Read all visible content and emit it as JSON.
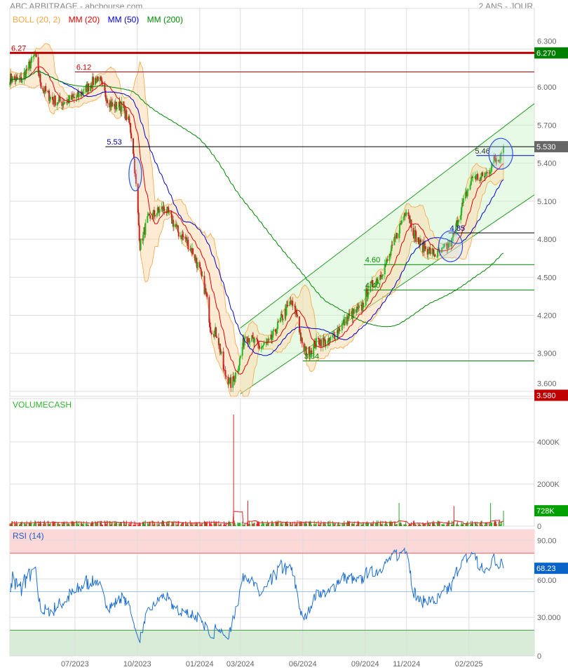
{
  "header": {
    "title": "ABC ARBITRAGE - abcbourse.com",
    "period": "2 ANS - JOUR"
  },
  "legend": [
    {
      "label": "BOLL (20, 2)",
      "color": "#f5a540"
    },
    {
      "label": "MM (20)",
      "color": "#e00000"
    },
    {
      "label": "MM (50)",
      "color": "#0000cc"
    },
    {
      "label": "MM (200)",
      "color": "#008800"
    }
  ],
  "chart_data": [
    {
      "type": "candlestick",
      "panel": "price",
      "y_ticks": [
        "6.300",
        "6.000",
        "5.700",
        "5.400",
        "5.100",
        "4.800",
        "4.500",
        "4.200",
        "3.900",
        "3.600"
      ],
      "ylim": [
        3.58,
        6.36
      ],
      "x_ticks": [
        "07/2023",
        "10/2023",
        "01/2024",
        "03/2024",
        "06/2024",
        "09/2024",
        "11/2024",
        "02/2025"
      ],
      "grid": true,
      "close_approx": [
        [
          "2023-03-27",
          6.07
        ],
        [
          "2023-04-12",
          6.05
        ],
        [
          "2023-04-28",
          6.2
        ],
        [
          "2023-05-03",
          6.25
        ],
        [
          "2023-05-13",
          6.0
        ],
        [
          "2023-05-29",
          5.9
        ],
        [
          "2023-06-13",
          5.88
        ],
        [
          "2023-07-04",
          5.92
        ],
        [
          "2023-07-20",
          6.0
        ],
        [
          "2023-08-04",
          6.08
        ],
        [
          "2023-08-14",
          5.95
        ],
        [
          "2023-08-25",
          5.85
        ],
        [
          "2023-09-09",
          5.85
        ],
        [
          "2023-09-20",
          5.7
        ],
        [
          "2023-09-25",
          5.5
        ],
        [
          "2023-09-30",
          5.15
        ],
        [
          "2023-10-05",
          4.75
        ],
        [
          "2023-10-16",
          4.95
        ],
        [
          "2023-10-26",
          5.0
        ],
        [
          "2023-11-10",
          5.05
        ],
        [
          "2023-11-21",
          4.95
        ],
        [
          "2023-12-01",
          4.85
        ],
        [
          "2023-12-11",
          4.8
        ],
        [
          "2023-12-22",
          4.7
        ],
        [
          "2024-01-01",
          4.55
        ],
        [
          "2024-01-11",
          4.35
        ],
        [
          "2024-01-17",
          4.1
        ],
        [
          "2024-01-27",
          4.05
        ],
        [
          "2024-02-06",
          3.75
        ],
        [
          "2024-02-17",
          3.65
        ],
        [
          "2024-02-27",
          3.8
        ],
        [
          "2024-03-08",
          4.05
        ],
        [
          "2024-03-19",
          4.0
        ],
        [
          "2024-03-29",
          3.95
        ],
        [
          "2024-04-13",
          3.98
        ],
        [
          "2024-04-28",
          4.15
        ],
        [
          "2024-05-14",
          4.3
        ],
        [
          "2024-05-24",
          4.2
        ],
        [
          "2024-05-31",
          3.95
        ],
        [
          "2024-06-08",
          3.9
        ],
        [
          "2024-06-24",
          4.0
        ],
        [
          "2024-07-09",
          3.98
        ],
        [
          "2024-07-25",
          4.1
        ],
        [
          "2024-08-10",
          4.2
        ],
        [
          "2024-08-26",
          4.25
        ],
        [
          "2024-09-05",
          4.4
        ],
        [
          "2024-09-21",
          4.5
        ],
        [
          "2024-10-06",
          4.65
        ],
        [
          "2024-10-22",
          4.9
        ],
        [
          "2024-11-01",
          5.05
        ],
        [
          "2024-11-12",
          4.85
        ],
        [
          "2024-11-22",
          4.75
        ],
        [
          "2024-12-02",
          4.72
        ],
        [
          "2024-12-13",
          4.68
        ],
        [
          "2024-12-23",
          4.7
        ],
        [
          "2025-01-07",
          4.78
        ],
        [
          "2025-01-18",
          5.0
        ],
        [
          "2025-01-28",
          5.15
        ],
        [
          "2025-02-07",
          5.3
        ],
        [
          "2025-02-18",
          5.28
        ],
        [
          "2025-02-28",
          5.32
        ],
        [
          "2025-03-10",
          5.42
        ],
        [
          "2025-03-18",
          5.45
        ],
        [
          "2025-03-24",
          5.53
        ]
      ],
      "last_price": "5.530",
      "high_badge": "6.270",
      "low_badge": "3.580",
      "badge_colors": {
        "high": "#008000",
        "last": "#666666",
        "low": "#c00000"
      },
      "levels": [
        {
          "value": 6.27,
          "label": "6.27",
          "color": "#c00000",
          "from": "2023-03-27"
        },
        {
          "value": 6.12,
          "label": "6.12",
          "color": "#c00000",
          "from": "2023-07-01"
        },
        {
          "value": 5.53,
          "label": "5.53",
          "color": "#000000",
          "label_color": "#0000aa",
          "from": "2023-08-15"
        },
        {
          "value": 5.46,
          "label": "5.46",
          "color": "#0000cc",
          "label_color": "#333333",
          "from": "2025-02-12"
        },
        {
          "value": 4.85,
          "label": "4.85",
          "color": "#000000",
          "label_color": "#0000aa",
          "from": "2025-01-02"
        },
        {
          "value": 4.6,
          "label": "4.60",
          "color": "#008800",
          "label_color": "#008800",
          "from": "2024-08-30"
        },
        {
          "value": 4.4,
          "label": "4.40",
          "color": "#008800",
          "label_color": "#008800",
          "from": "2024-08-30"
        },
        {
          "value": 3.84,
          "label": "3.84",
          "color": "#008800",
          "label_color": "#008800",
          "from": "2024-06-01"
        }
      ],
      "channel": {
        "start": "2024-03-01",
        "upper": [
          4.1,
          5.87
        ],
        "lower": [
          3.58,
          5.15
        ]
      },
      "circled": [
        "2023-09-28",
        "2025-01-05",
        "2025-03-20"
      ]
    },
    {
      "type": "bar",
      "panel": "volume",
      "title": "VOLUMECASH",
      "y_ticks": [
        "4000K",
        "2000K",
        "0"
      ],
      "ylim": [
        0,
        5900
      ],
      "typical_range_k": [
        50,
        300
      ],
      "spikes_k": [
        [
          "2024-02-20",
          5300
        ],
        [
          "2024-03-12",
          1200
        ],
        [
          "2024-10-20",
          1100
        ],
        [
          "2025-01-10",
          950
        ],
        [
          "2025-03-05",
          1100
        ],
        [
          "2025-03-24",
          728
        ]
      ],
      "last_value": "728K",
      "badge_color": "#00a000"
    },
    {
      "type": "line",
      "panel": "rsi",
      "title": "RSI (14)",
      "y_ticks": [
        "90.00",
        "60.00",
        "30.000",
        "0"
      ],
      "ylim": [
        0,
        100
      ],
      "overbought": 80,
      "oversold": 20,
      "midline": 50,
      "last_value": "68.23",
      "badge_color": "#0a64c8"
    }
  ]
}
